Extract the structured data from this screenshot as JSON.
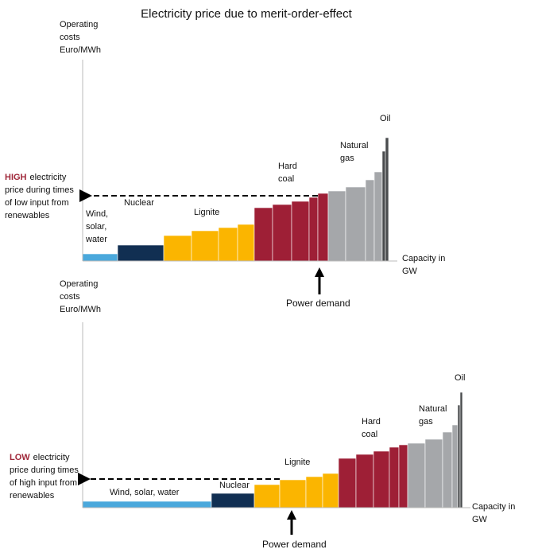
{
  "title": "Electricity price due to merit-order-effect",
  "top": {
    "y_axis_label": [
      "Operating",
      "costs",
      "Euro/MWh"
    ],
    "x_axis_label": [
      "Capacity in",
      "GW"
    ],
    "labels": {
      "wind": [
        "Wind,",
        "solar,",
        "water"
      ],
      "nuclear": [
        "Nuclear"
      ],
      "lignite": [
        "Lignite"
      ],
      "hard_coal": [
        "Hard",
        "coal"
      ],
      "natural_gas": [
        "Natural",
        "gas"
      ],
      "oil": [
        "Oil"
      ]
    },
    "annotation": {
      "emphasis": "HIGH",
      "lines": [
        "electricity",
        "price during times",
        "of low input from",
        "renewables"
      ]
    },
    "demand": "Power demand"
  },
  "bottom": {
    "y_axis_label": [
      "Operating",
      "costs",
      "Euro/MWh"
    ],
    "x_axis_label": [
      "Capacity in",
      "GW"
    ],
    "labels": {
      "wind": [
        "Wind, solar, water"
      ],
      "nuclear": [
        "Nuclear"
      ],
      "lignite": [
        "Lignite"
      ],
      "hard_coal": [
        "Hard",
        "coal"
      ],
      "natural_gas": [
        "Natural",
        "gas"
      ],
      "oil": [
        "Oil"
      ]
    },
    "annotation": {
      "emphasis": "LOW",
      "lines": [
        "electricity",
        "price during times",
        "of high input from",
        "renewables"
      ]
    },
    "demand": "Power demand"
  }
}
